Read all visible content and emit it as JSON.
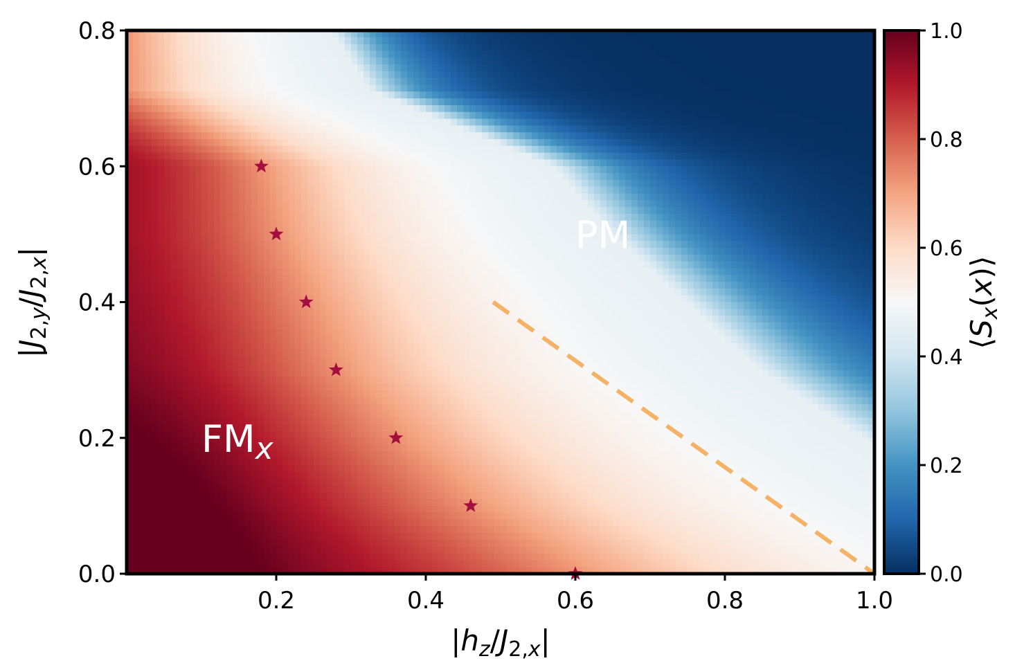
{
  "chart_data": {
    "type": "heatmap",
    "title": "",
    "xlabel": "|h_z/J_{2,x}|",
    "ylabel": "|J_{2,y}/J_{2,x}|",
    "xlim": [
      0.0,
      1.0
    ],
    "ylim": [
      0.0,
      0.8
    ],
    "x_ticks": [
      0.2,
      0.4,
      0.6,
      0.8,
      1.0
    ],
    "x_tick_labels": [
      "0.2",
      "0.4",
      "0.6",
      "0.8",
      "1.0"
    ],
    "y_ticks": [
      0.0,
      0.2,
      0.4,
      0.6,
      0.8
    ],
    "y_tick_labels": [
      "0.0",
      "0.2",
      "0.4",
      "0.6",
      "0.8"
    ],
    "colorbar": {
      "label": "⟨S_x(x)⟩",
      "range": [
        0.0,
        1.0
      ],
      "ticks": [
        0.0,
        0.2,
        0.4,
        0.6,
        0.8,
        1.0
      ],
      "tick_labels": [
        "0.0",
        "0.2",
        "0.4",
        "0.6",
        "0.8",
        "1.0"
      ],
      "colormap": "RdBu_r",
      "colors": [
        "#053061",
        "#2166ac",
        "#4393c3",
        "#92c5de",
        "#d1e5f0",
        "#f7f7f7",
        "#fddbc7",
        "#f4a582",
        "#d6604d",
        "#b2182b",
        "#67001f"
      ]
    },
    "transition_points": {
      "marker": "star",
      "color": "#a50f3f",
      "points": [
        {
          "x": 0.18,
          "y": 0.6
        },
        {
          "x": 0.2,
          "y": 0.5
        },
        {
          "x": 0.24,
          "y": 0.4
        },
        {
          "x": 0.28,
          "y": 0.3
        },
        {
          "x": 0.36,
          "y": 0.2
        },
        {
          "x": 0.46,
          "y": 0.1
        },
        {
          "x": 0.6,
          "y": 0.0
        }
      ]
    },
    "dashed_line": {
      "color": "#f4b266",
      "points": [
        {
          "x": 0.49,
          "y": 0.4
        },
        {
          "x": 1.0,
          "y": 0.0
        }
      ]
    },
    "regions": [
      {
        "label": "FM",
        "subscript": "x",
        "x": 0.1,
        "y": 0.2
      },
      {
        "label": "PM",
        "subscript": "",
        "x": 0.6,
        "y": 0.5
      }
    ]
  }
}
